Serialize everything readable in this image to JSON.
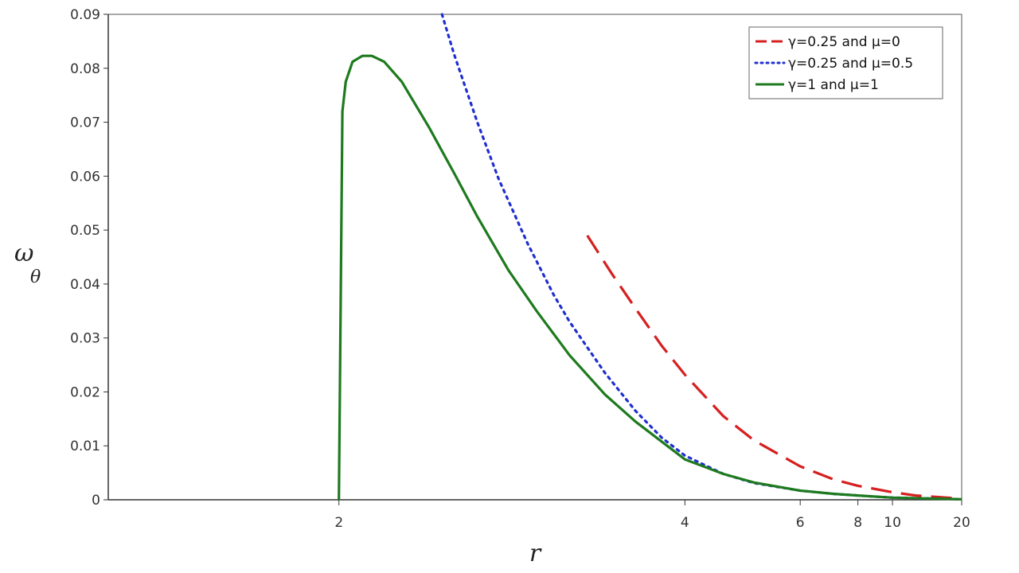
{
  "chart_data": {
    "type": "line",
    "xlabel": "r",
    "ylabel": "ω",
    "ylabel_subscript": "θ",
    "x_scale": "reciprocal",
    "xlim": [
      1.5,
      20
    ],
    "ylim": [
      0,
      0.09
    ],
    "x_ticks": [
      2,
      4,
      6,
      8,
      10,
      20
    ],
    "x_tick_labels": [
      "2",
      "4",
      "6",
      "8",
      "10",
      "20"
    ],
    "y_ticks": [
      0,
      0.01,
      0.02,
      0.03,
      0.04,
      0.05,
      0.06,
      0.07,
      0.08,
      0.09
    ],
    "y_tick_labels": [
      "0",
      "0.01",
      "0.02",
      "0.03",
      "0.04",
      "0.05",
      "0.06",
      "0.07",
      "0.08",
      "0.09"
    ],
    "grid": false,
    "legend_position": "top-right",
    "series": [
      {
        "name": "γ=0.25 and μ=0",
        "color": "#d62020",
        "style": "dashed",
        "x": [
          3.12,
          3.3,
          3.5,
          3.75,
          4.0,
          4.5,
          5.0,
          6.0,
          7.0,
          8.0,
          10.0,
          12.0,
          15.0,
          20.0
        ],
        "y": [
          0.049,
          0.042,
          0.0355,
          0.0285,
          0.0232,
          0.0155,
          0.011,
          0.0062,
          0.0038,
          0.0026,
          0.0014,
          0.0008,
          0.0005,
          0.0002
        ]
      },
      {
        "name": "γ=0.25 and μ=0.5",
        "color": "#1f2fd0",
        "style": "dotted",
        "x": [
          2.35,
          2.4,
          2.5,
          2.6,
          2.75,
          2.9,
          3.0,
          3.25,
          3.5,
          3.75,
          4.0,
          4.5,
          5.0,
          6.0,
          7.0,
          8.0,
          10.0,
          15.0,
          20.0
        ],
        "y": [
          0.09,
          0.0825,
          0.07,
          0.0595,
          0.0475,
          0.038,
          0.033,
          0.0235,
          0.0165,
          0.0115,
          0.0082,
          0.0048,
          0.0031,
          0.0017,
          0.0011,
          0.0008,
          0.0004,
          0.0002,
          0.0001
        ]
      },
      {
        "name": "γ=1 and μ=1",
        "color": "#1e7a1e",
        "style": "solid",
        "x": [
          2.0,
          2.01,
          2.02,
          2.04,
          2.07,
          2.1,
          2.14,
          2.2,
          2.3,
          2.4,
          2.5,
          2.65,
          2.8,
          3.0,
          3.25,
          3.5,
          4.0,
          4.5,
          5.0,
          6.0,
          7.0,
          8.0,
          10.0,
          15.0,
          20.0
        ],
        "y": [
          0.0,
          0.072,
          0.0775,
          0.0812,
          0.0823,
          0.0823,
          0.0812,
          0.0775,
          0.069,
          0.0605,
          0.0525,
          0.0425,
          0.035,
          0.0268,
          0.0195,
          0.0145,
          0.0075,
          0.0048,
          0.0032,
          0.0017,
          0.0011,
          0.0008,
          0.0004,
          0.0002,
          0.0001
        ]
      }
    ]
  }
}
